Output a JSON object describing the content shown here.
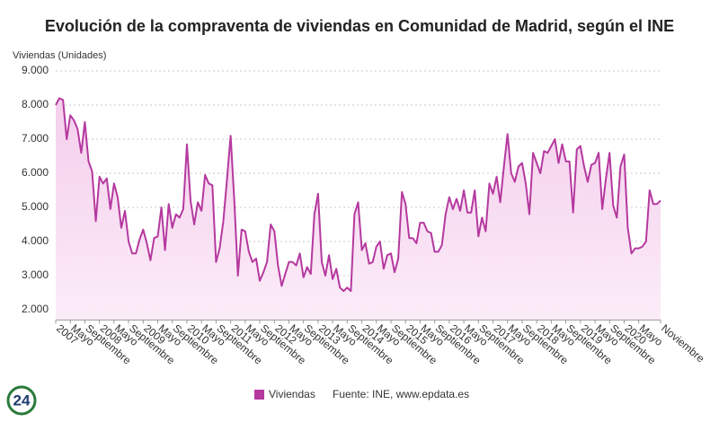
{
  "chart_data": {
    "type": "line",
    "title": "Evolución de la compraventa de viviendas en Comunidad de Madrid, según el INE",
    "y_label": "Viviendas (Unidades)",
    "source": "Fuente: INE, www.epdata.es",
    "logo": "24",
    "categories": [
      "2007",
      null,
      null,
      null,
      "Mayo",
      null,
      null,
      null,
      "Septiembre",
      null,
      null,
      null,
      "2008",
      null,
      null,
      null,
      "Mayo",
      null,
      null,
      null,
      "Septiembre",
      null,
      null,
      null,
      "2009",
      null,
      null,
      null,
      "Mayo",
      null,
      null,
      null,
      "Septiembre",
      null,
      null,
      null,
      "2010",
      null,
      null,
      null,
      "Mayo",
      null,
      null,
      null,
      "Septiembre",
      null,
      null,
      null,
      "2011",
      null,
      null,
      null,
      "Mayo",
      null,
      null,
      null,
      "Septiembre",
      null,
      null,
      null,
      "2012",
      null,
      null,
      null,
      "Mayo",
      null,
      null,
      null,
      "Septiembre",
      null,
      null,
      null,
      "2013",
      null,
      null,
      null,
      "Mayo",
      null,
      null,
      null,
      "Septiembre",
      null,
      null,
      null,
      "2014",
      null,
      null,
      null,
      "Mayo",
      null,
      null,
      null,
      "Septiembre",
      null,
      null,
      null,
      "2015",
      null,
      null,
      null,
      "Mayo",
      null,
      null,
      null,
      "Septiembre",
      null,
      null,
      null,
      "2016",
      null,
      null,
      null,
      "Mayo",
      null,
      null,
      null,
      "Septiembre",
      null,
      null,
      null,
      "2017",
      null,
      null,
      null,
      "Mayo",
      null,
      null,
      null,
      "Septiembre",
      null,
      null,
      null,
      "2018",
      null,
      null,
      null,
      "Mayo",
      null,
      null,
      null,
      "Septiembre",
      null,
      null,
      null,
      "2019",
      null,
      null,
      null,
      "Mayo",
      null,
      null,
      null,
      "Septiembre",
      null,
      null,
      null,
      "2020",
      null,
      null,
      null,
      "Mayo",
      null,
      null,
      null,
      null,
      null,
      "Noviembre"
    ],
    "series": [
      {
        "name": "Viviendas",
        "color": "#b5399f",
        "values": [
          8000,
          8200,
          8150,
          7000,
          7700,
          7550,
          7300,
          6600,
          7500,
          6350,
          6050,
          4600,
          5900,
          5700,
          5850,
          4950,
          5700,
          5300,
          4400,
          4900,
          4000,
          3650,
          3650,
          4050,
          4350,
          3950,
          3450,
          4100,
          4150,
          5000,
          3750,
          5100,
          4400,
          4800,
          4700,
          4950,
          6850,
          5200,
          4500,
          5150,
          4900,
          5950,
          5700,
          5650,
          3400,
          3800,
          4600,
          5800,
          7100,
          5200,
          3000,
          4350,
          4300,
          3700,
          3400,
          3500,
          2850,
          3100,
          3400,
          4500,
          4300,
          3300,
          2700,
          3050,
          3400,
          3400,
          3300,
          3650,
          2950,
          3250,
          3050,
          4800,
          5400,
          3400,
          3000,
          3600,
          2900,
          3200,
          2650,
          2550,
          2650,
          2550,
          4800,
          5150,
          3750,
          3950,
          3350,
          3400,
          3850,
          4000,
          3200,
          3600,
          3650,
          3100,
          3500,
          5450,
          5100,
          4100,
          4100,
          3950,
          4550,
          4550,
          4300,
          4250,
          3700,
          3700,
          3900,
          4800,
          5300,
          4950,
          5250,
          4900,
          5500,
          4850,
          4850,
          5500,
          4150,
          4700,
          4300,
          5700,
          5400,
          5900,
          5150,
          6200,
          7150,
          6000,
          5750,
          6200,
          6300,
          5700,
          4800,
          6600,
          6300,
          6000,
          6650,
          6600,
          6800,
          7000,
          6300,
          6850,
          6350,
          6350,
          4850,
          6700,
          6800,
          6200,
          5750,
          6250,
          6300,
          6600,
          4950,
          5850,
          6600,
          5050,
          4700,
          6200,
          6550,
          4400,
          3650,
          3800,
          3800,
          3850,
          4000,
          5500,
          5100,
          5100,
          5200
        ]
      }
    ],
    "ylim": [
      1700,
      9300
    ],
    "yticks": [
      {
        "value": 2000,
        "label": "2.000"
      },
      {
        "value": 3000,
        "label": "3.000"
      },
      {
        "value": 4000,
        "label": "4.000"
      },
      {
        "value": 5000,
        "label": "5.000"
      },
      {
        "value": 6000,
        "label": "6.000"
      },
      {
        "value": 7000,
        "label": "7.000"
      },
      {
        "value": 8000,
        "label": "8.000"
      },
      {
        "value": 9000,
        "label": "9.000"
      }
    ],
    "grid": true
  }
}
